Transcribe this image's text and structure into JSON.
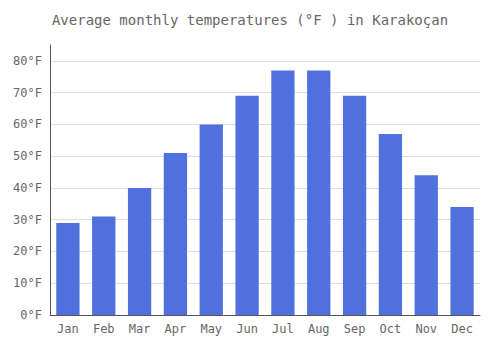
{
  "chart_data": {
    "type": "bar",
    "title": "Average monthly temperatures (°F ) in Karakoçan",
    "categories": [
      "Jan",
      "Feb",
      "Mar",
      "Apr",
      "May",
      "Jun",
      "Jul",
      "Aug",
      "Sep",
      "Oct",
      "Nov",
      "Dec"
    ],
    "values": [
      29,
      31,
      40,
      51,
      60,
      69,
      77,
      77,
      69,
      57,
      44,
      34
    ],
    "ylim": [
      0,
      85
    ],
    "yticks": [
      {
        "value": 0,
        "label": "0°F"
      },
      {
        "value": 10,
        "label": "10°F"
      },
      {
        "value": 20,
        "label": "20°F"
      },
      {
        "value": 30,
        "label": "30°F"
      },
      {
        "value": 40,
        "label": "40°F"
      },
      {
        "value": 50,
        "label": "50°F"
      },
      {
        "value": 60,
        "label": "60°F"
      },
      {
        "value": 70,
        "label": "70°F"
      },
      {
        "value": 80,
        "label": "80°F"
      }
    ],
    "grid": true
  }
}
